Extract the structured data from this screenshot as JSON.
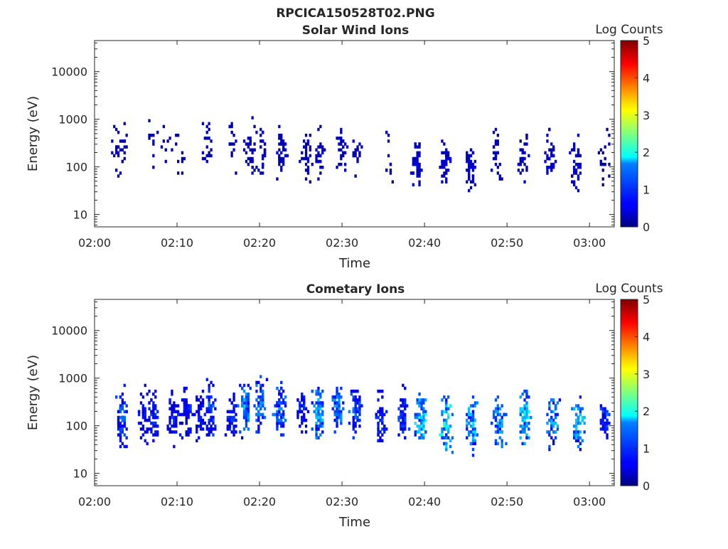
{
  "figure_title": "RPCICA150528T02.PNG",
  "colorbar": {
    "label": "Log Counts",
    "ticks": [
      "0",
      "1",
      "2",
      "3",
      "4",
      "5"
    ],
    "range": [
      0,
      5
    ],
    "colormap": "jet"
  },
  "chart_data": [
    {
      "type": "heatmap",
      "title": "Solar Wind Ions",
      "xlabel": "Time",
      "ylabel": "Energy (eV)",
      "x_ticks": [
        "02:00",
        "02:10",
        "02:20",
        "02:30",
        "02:40",
        "02:50",
        "03:00"
      ],
      "x_range_min": [
        0,
        63
      ],
      "y_ticks": [
        "10",
        "100",
        "1000",
        "10000"
      ],
      "y_scale": "log",
      "ylim": [
        5.5,
        45000
      ],
      "bursts": [
        {
          "t": 2.5,
          "e": 220,
          "n": 18,
          "lvl": 0.2
        },
        {
          "t": 3.5,
          "e": 250,
          "n": 14,
          "lvl": 0.2
        },
        {
          "t": 6.8,
          "e": 300,
          "n": 10,
          "lvl": 0.2
        },
        {
          "t": 8.6,
          "e": 250,
          "n": 8,
          "lvl": 0.2
        },
        {
          "t": 10.4,
          "e": 220,
          "n": 10,
          "lvl": 0.2
        },
        {
          "t": 13.6,
          "e": 260,
          "n": 20,
          "lvl": 0.3
        },
        {
          "t": 16.5,
          "e": 260,
          "n": 16,
          "lvl": 0.3
        },
        {
          "t": 18.8,
          "e": 260,
          "n": 36,
          "lvl": 0.3
        },
        {
          "t": 20.2,
          "e": 260,
          "n": 30,
          "lvl": 0.3
        },
        {
          "t": 22.6,
          "e": 220,
          "n": 36,
          "lvl": 0.3
        },
        {
          "t": 25.6,
          "e": 180,
          "n": 30,
          "lvl": 0.3
        },
        {
          "t": 27.2,
          "e": 160,
          "n": 24,
          "lvl": 0.3
        },
        {
          "t": 29.8,
          "e": 260,
          "n": 30,
          "lvl": 0.3
        },
        {
          "t": 31.6,
          "e": 240,
          "n": 18,
          "lvl": 0.3
        },
        {
          "t": 35.4,
          "e": 200,
          "n": 12,
          "lvl": 0.2
        },
        {
          "t": 38.8,
          "e": 120,
          "n": 44,
          "lvl": 0.4
        },
        {
          "t": 42.3,
          "e": 100,
          "n": 42,
          "lvl": 0.4
        },
        {
          "t": 45.4,
          "e": 100,
          "n": 44,
          "lvl": 0.4
        },
        {
          "t": 48.6,
          "e": 180,
          "n": 26,
          "lvl": 0.3
        },
        {
          "t": 51.8,
          "e": 150,
          "n": 30,
          "lvl": 0.3
        },
        {
          "t": 55.1,
          "e": 150,
          "n": 36,
          "lvl": 0.4
        },
        {
          "t": 58.3,
          "e": 120,
          "n": 34,
          "lvl": 0.4
        },
        {
          "t": 61.6,
          "e": 160,
          "n": 18,
          "lvl": 0.2
        }
      ]
    },
    {
      "type": "heatmap",
      "title": "Cometary Ions",
      "xlabel": "Time",
      "ylabel": "Energy (eV)",
      "x_ticks": [
        "02:00",
        "02:10",
        "02:20",
        "02:30",
        "02:40",
        "02:50",
        "03:00"
      ],
      "x_range_min": [
        0,
        63
      ],
      "y_ticks": [
        "10",
        "100",
        "1000",
        "10000"
      ],
      "y_scale": "log",
      "ylim": [
        5.5,
        45000
      ],
      "bursts": [
        {
          "t": 3.2,
          "e": 150,
          "n": 70,
          "lvl": 0.9
        },
        {
          "t": 5.8,
          "e": 160,
          "n": 36,
          "lvl": 0.6
        },
        {
          "t": 7.0,
          "e": 150,
          "n": 60,
          "lvl": 0.7
        },
        {
          "t": 9.4,
          "e": 170,
          "n": 50,
          "lvl": 0.7
        },
        {
          "t": 10.9,
          "e": 200,
          "n": 60,
          "lvl": 0.7
        },
        {
          "t": 12.7,
          "e": 170,
          "n": 50,
          "lvl": 0.6
        },
        {
          "t": 14.0,
          "e": 200,
          "n": 64,
          "lvl": 0.9
        },
        {
          "t": 16.5,
          "e": 170,
          "n": 52,
          "lvl": 0.7
        },
        {
          "t": 18.1,
          "e": 220,
          "n": 72,
          "lvl": 1.2
        },
        {
          "t": 19.9,
          "e": 280,
          "n": 60,
          "lvl": 1.1
        },
        {
          "t": 22.4,
          "e": 230,
          "n": 72,
          "lvl": 1.0
        },
        {
          "t": 25.0,
          "e": 210,
          "n": 50,
          "lvl": 0.7
        },
        {
          "t": 27.0,
          "e": 200,
          "n": 72,
          "lvl": 1.3
        },
        {
          "t": 29.3,
          "e": 260,
          "n": 64,
          "lvl": 1.1
        },
        {
          "t": 31.6,
          "e": 220,
          "n": 62,
          "lvl": 0.9
        },
        {
          "t": 34.6,
          "e": 130,
          "n": 54,
          "lvl": 0.7
        },
        {
          "t": 37.2,
          "e": 160,
          "n": 56,
          "lvl": 0.8
        },
        {
          "t": 39.4,
          "e": 150,
          "n": 76,
          "lvl": 1.5
        },
        {
          "t": 42.5,
          "e": 110,
          "n": 82,
          "lvl": 1.6
        },
        {
          "t": 45.6,
          "e": 110,
          "n": 74,
          "lvl": 1.3
        },
        {
          "t": 48.9,
          "e": 120,
          "n": 58,
          "lvl": 1.2
        },
        {
          "t": 52.0,
          "e": 160,
          "n": 66,
          "lvl": 1.5
        },
        {
          "t": 55.4,
          "e": 140,
          "n": 52,
          "lvl": 1.2
        },
        {
          "t": 58.5,
          "e": 120,
          "n": 60,
          "lvl": 1.3
        },
        {
          "t": 61.7,
          "e": 150,
          "n": 46,
          "lvl": 0.9
        }
      ]
    }
  ]
}
